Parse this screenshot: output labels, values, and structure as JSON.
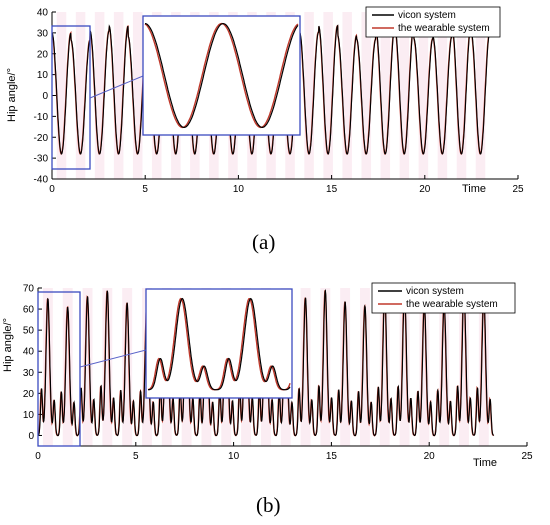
{
  "chart_data": [
    {
      "type": "line",
      "panel_label": "(a)",
      "xlabel": "Time",
      "ylabel": "Hip angle/°",
      "xlim": [
        0,
        25
      ],
      "ylim": [
        -40,
        40
      ],
      "xticks": [
        0,
        5,
        10,
        15,
        20,
        25
      ],
      "yticks": [
        -40,
        -30,
        -20,
        -10,
        0,
        10,
        20,
        30,
        40
      ],
      "legend": {
        "position": "top-right",
        "entries": [
          "vicon system",
          "the wearable system"
        ]
      },
      "series": [
        {
          "name": "vicon system",
          "color": "#000000",
          "x_range": [
            0,
            23.5
          ],
          "cycles": 23,
          "max": 30,
          "min": -28
        },
        {
          "name": "the wearable system",
          "color": "#c0392b",
          "x_range": [
            0,
            23.5
          ],
          "cycles": 23,
          "max": 30,
          "min": -28
        }
      ],
      "zoom_inset": {
        "x_range": [
          0,
          2
        ],
        "y_range": [
          -30,
          32
        ]
      },
      "shaded_regions_color": "#f7d6e4"
    },
    {
      "type": "line",
      "panel_label": "(b)",
      "xlabel": "Time",
      "ylabel": "Hip angle/°",
      "xlim": [
        0,
        25
      ],
      "ylim": [
        -5,
        70
      ],
      "xticks": [
        0,
        5,
        10,
        15,
        20,
        25
      ],
      "yticks": [
        0,
        10,
        20,
        30,
        40,
        50,
        60,
        70
      ],
      "legend": {
        "position": "top-right",
        "entries": [
          "vicon system",
          "the wearable system"
        ]
      },
      "series": [
        {
          "name": "vicon system",
          "color": "#000000",
          "x_range": [
            0,
            23.3
          ],
          "cycles": 23,
          "max": 65,
          "min": -2
        },
        {
          "name": "the wearable system",
          "color": "#c0392b",
          "x_range": [
            0,
            23.3
          ],
          "cycles": 23,
          "max": 65,
          "min": -2
        }
      ],
      "zoom_inset": {
        "x_range": [
          0,
          2.1
        ],
        "y_range": [
          -3,
          69
        ]
      },
      "shaded_regions_color": "#f7d6e4"
    }
  ]
}
